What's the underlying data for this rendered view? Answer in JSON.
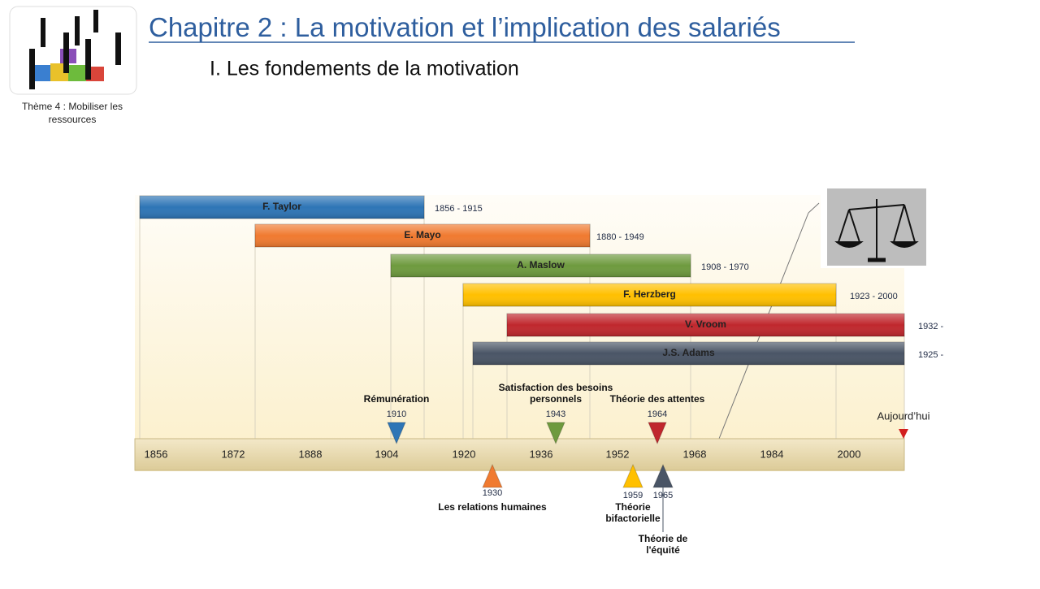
{
  "header": {
    "title_prefix": "Chapitre 2 : ",
    "title": "La motivation et l’implication des salariés",
    "subtitle": "I. Les fondements de la motivation",
    "theme": [
      "Thème 4 : Mobiliser les",
      "ressources"
    ]
  },
  "timeline": {
    "axis": [
      1856,
      1872,
      1888,
      1904,
      1920,
      1936,
      1952,
      1968,
      1984,
      2000
    ],
    "today": "Aujourd’hui",
    "persons": [
      {
        "name": "F. Taylor",
        "dates": "1856 - 1915",
        "color": "#2e75b6"
      },
      {
        "name": "E. Mayo",
        "dates": "1880 - 1949",
        "color": "#f07a30"
      },
      {
        "name": "A. Maslow",
        "dates": "1908 - 1970",
        "color": "#6e9a3e"
      },
      {
        "name": "F. Herzberg",
        "dates": "1923 - 2000",
        "color": "#ffc000"
      },
      {
        "name": "V. Vroom",
        "dates": "1932 -",
        "color": "#c0272d"
      },
      {
        "name": "J.S. Adams",
        "dates": "1925 -",
        "color": "#4a5566"
      }
    ],
    "events": [
      {
        "year": 1910,
        "label": [
          "Rémunération"
        ],
        "color": "#2e75b6"
      },
      {
        "year": 1943,
        "label": [
          "Satisfaction des besoins",
          "personnels"
        ],
        "color": "#6e9a3e"
      },
      {
        "year": 1964,
        "label": [
          "Théorie des attentes"
        ],
        "color": "#c0272d"
      },
      {
        "year": 1930,
        "label": [
          "Les relations humaines"
        ],
        "color": "#f07a30"
      },
      {
        "year": 1959,
        "label": [
          "Théorie",
          "bifactorielle"
        ],
        "color": "#ffc000"
      },
      {
        "year": 1965,
        "label": [
          "Théorie de",
          "l'équité"
        ],
        "color": "#4a5566"
      }
    ]
  }
}
